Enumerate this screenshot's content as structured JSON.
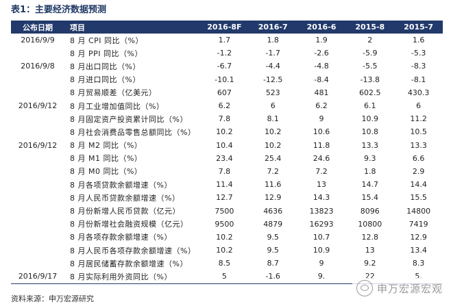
{
  "title": "表1：主要经济数据预测",
  "headers": {
    "date": "公布日期",
    "item": "项目",
    "cols": [
      "2016-8F",
      "2016-7",
      "2016-6",
      "2015-8",
      "2015-7"
    ]
  },
  "rows": [
    {
      "date": "2016/9/9",
      "item": "8 月 CPI 同比（%）",
      "values": [
        "1.7",
        "1.8",
        "1.9",
        "2",
        "1.6"
      ]
    },
    {
      "date": "",
      "item": "8 月 PPI 同比（%）",
      "values": [
        "-1.2",
        "-1.7",
        "-2.6",
        "-5.9",
        "-5.3"
      ]
    },
    {
      "date": "2016/9/8",
      "item": "8 月出口同比（%）",
      "values": [
        "-6.7",
        "-4.4",
        "-4.8",
        "-5.5",
        "-8.3"
      ]
    },
    {
      "date": "",
      "item": "8 月进口同比（%）",
      "values": [
        "-10.1",
        "-12.5",
        "-8.4",
        "-13.8",
        "-8.1"
      ]
    },
    {
      "date": "",
      "item": "8 月贸易顺差（亿美元）",
      "values": [
        "607",
        "523",
        "481",
        "602.5",
        "430.3"
      ]
    },
    {
      "date": "2016/9/12",
      "item": "8 月工业增加值同比（%）",
      "values": [
        "6.2",
        "6",
        "6.2",
        "6.1",
        "6"
      ]
    },
    {
      "date": "",
      "item": "8 月固定资产投资累计同比（%）",
      "values": [
        "7.8",
        "8.1",
        "9",
        "10.9",
        "11.2"
      ]
    },
    {
      "date": "",
      "item": "8 月社会消费品零售总额同比（%）",
      "values": [
        "10.2",
        "10.2",
        "10.6",
        "10.8",
        "10.5"
      ]
    },
    {
      "date": "2016/9/12",
      "item": "8 月 M2 同比（%）",
      "values": [
        "10.4",
        "10.2",
        "11.8",
        "13.3",
        "13.3"
      ]
    },
    {
      "date": "",
      "item": "8 月 M1 同比（%）",
      "values": [
        "23.4",
        "25.4",
        "24.6",
        "9.3",
        "6.6"
      ]
    },
    {
      "date": "",
      "item": "8 月 M0 同比（%）",
      "values": [
        "7.8",
        "7.2",
        "7.2",
        "1.8",
        "2.9"
      ]
    },
    {
      "date": "",
      "item": "8 月各项贷款余额增速（%）",
      "values": [
        "11.4",
        "11.6",
        "13",
        "14.7",
        "14.4"
      ]
    },
    {
      "date": "",
      "item": "8 月人民币贷款余额增速（%）",
      "values": [
        "12.7",
        "12.9",
        "14.3",
        "15.4",
        "15.5"
      ]
    },
    {
      "date": "",
      "item": "8 月份新增人民币贷款（亿元）",
      "values": [
        "7500",
        "4636",
        "13823",
        "8096",
        "14800"
      ]
    },
    {
      "date": "",
      "item": "8 月份新增社会融资规模（亿元）",
      "values": [
        "9500",
        "4879",
        "16293",
        "10800",
        "7419"
      ]
    },
    {
      "date": "",
      "item": "8 月各项存款余额增速（%）",
      "values": [
        "10.2",
        "9.5",
        "10.7",
        "12.8",
        "12.9"
      ]
    },
    {
      "date": "",
      "item": "8 月人民币各项存款余额增速（%）",
      "values": [
        "10.2",
        "9.5",
        "10.9",
        "13",
        "13.4"
      ]
    },
    {
      "date": "",
      "item": "8 月居民储蓄存款余额增速（%）",
      "values": [
        "8.5",
        "8.7",
        "9",
        "9.2",
        "8.3"
      ]
    },
    {
      "date": "2016/9/17",
      "item": "8 月实际利用外资同比（%）",
      "values": [
        "5",
        "-1.6",
        "9.",
        "22",
        "5."
      ]
    }
  ],
  "source": "资料来源：申万宏源研究",
  "watermark": "申万宏源宏观",
  "colors": {
    "header_bg": "#223a6b",
    "title": "#1f3864"
  }
}
